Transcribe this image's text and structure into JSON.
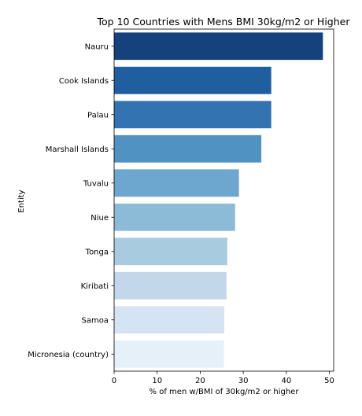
{
  "chart_data": {
    "type": "bar",
    "orientation": "horizontal",
    "title": "Top 10 Countries with Mens BMI 30kg/m2 or Higher",
    "xlabel": "% of men w/BMI of 30kg/m2 or higher",
    "ylabel": "Entity",
    "categories": [
      "Nauru",
      "Cook Islands",
      "Palau",
      "Marshall Islands",
      "Tuvalu",
      "Niue",
      "Tonga",
      "Kiribati",
      "Samoa",
      "Micronesia (country)"
    ],
    "values": [
      48.5,
      36.5,
      36.5,
      34.2,
      29.0,
      28.1,
      26.3,
      26.1,
      25.6,
      25.5
    ],
    "colors": [
      "#15427d",
      "#205f9f",
      "#3373b1",
      "#5093c3",
      "#6da7cf",
      "#8cbbd7",
      "#a9cbe0",
      "#c2d8ea",
      "#d5e4f2",
      "#e6f0f9"
    ],
    "xlim": [
      0,
      51
    ],
    "xticks": [
      0,
      10,
      20,
      30,
      40,
      50
    ],
    "grid": false,
    "legend": "none"
  }
}
